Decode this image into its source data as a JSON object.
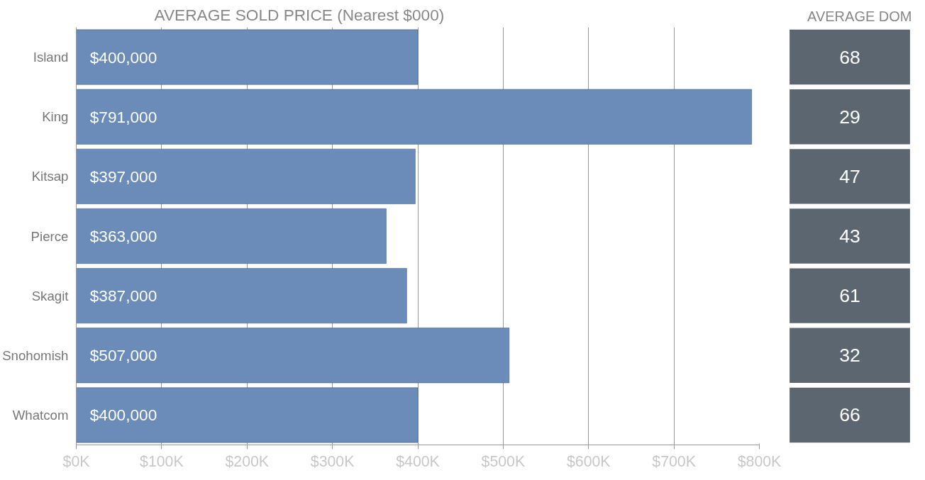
{
  "chart_data": [
    {
      "type": "bar",
      "orientation": "horizontal",
      "title": "AVERAGE SOLD PRICE (Nearest $000)",
      "categories": [
        "Island",
        "King",
        "Kitsap",
        "Pierce",
        "Skagit",
        "Snohomish",
        "Whatcom"
      ],
      "values": [
        400000,
        791000,
        397000,
        363000,
        387000,
        507000,
        400000
      ],
      "value_labels": [
        "$400,000",
        "$791,000",
        "$397,000",
        "$363,000",
        "$387,000",
        "$507,000",
        "$400,000"
      ],
      "color": "#6b8cb8",
      "xlim": [
        0,
        800000
      ],
      "xticks": [
        {
          "value": 0,
          "label": "$0K"
        },
        {
          "value": 100000,
          "label": "$100K"
        },
        {
          "value": 200000,
          "label": "$200K"
        },
        {
          "value": 300000,
          "label": "$300K"
        },
        {
          "value": 400000,
          "label": "$400K"
        },
        {
          "value": 500000,
          "label": "$500K"
        },
        {
          "value": 600000,
          "label": "$600K"
        },
        {
          "value": 700000,
          "label": "$700K"
        },
        {
          "value": 800000,
          "label": "$800K"
        }
      ],
      "grid": "x"
    },
    {
      "type": "other",
      "title": "AVERAGE DOM",
      "values": [
        68,
        29,
        47,
        43,
        61,
        32,
        66
      ],
      "color": "#5c6670",
      "data_labels": true
    }
  ]
}
